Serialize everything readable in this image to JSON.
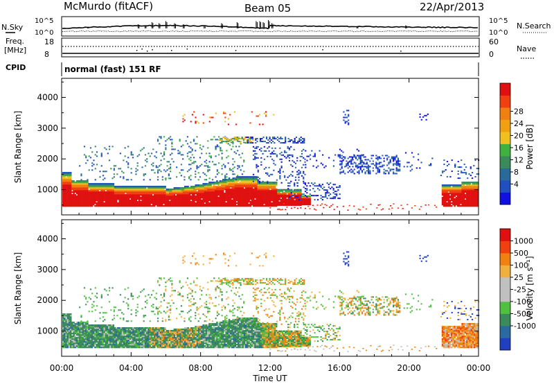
{
  "header": {
    "title": "McMurdo (fitACF)",
    "beam": "Beam 05",
    "date": "22/Apr/2013"
  },
  "status_panels": {
    "nsky_label": "N.Sky",
    "nsky_ticks": [
      "10^5",
      "10^0"
    ],
    "nsearch_label": "N.Search",
    "nsearch_ticks": [
      "10^5",
      "10^0"
    ],
    "freq_label_1": "Freq.",
    "freq_label_2": "[MHz]",
    "freq_ticks": [
      "18",
      "8"
    ],
    "nave_label": "Nave",
    "nave_ticks": [
      "60",
      "0"
    ],
    "cpid_label": "CPID",
    "cpid_value": "normal (fast) 151 RF"
  },
  "chart_data": [
    {
      "type": "heatmap",
      "name": "power",
      "ylabel": "Slant Range [km]",
      "ylim": [
        180,
        4620
      ],
      "yticks": [
        "1000",
        "2000",
        "3000",
        "4000"
      ],
      "colorbar_label": "Power [dB]",
      "colorbar_ticks": [
        "4",
        "8",
        "12",
        "16",
        "20",
        "24",
        "28"
      ],
      "colorbar_colors": [
        "#1010e0",
        "#2050c0",
        "#2a6a9a",
        "#3a8a5a",
        "#40b040",
        "#f0c020",
        "#f0a010",
        "#f08010",
        "#f04010",
        "#e01010"
      ]
    },
    {
      "type": "heatmap",
      "name": "velocity",
      "ylabel": "Slant Range [km]",
      "ylim": [
        180,
        4620
      ],
      "yticks": [
        "1000",
        "2000",
        "3000",
        "4000"
      ],
      "xlabel": "Time UT",
      "xticks": [
        "00:00",
        "04:00",
        "08:00",
        "12:00",
        "16:00",
        "20:00",
        "00:00"
      ],
      "colorbar_label": "Velocity [m s⁻¹]",
      "colorbar_ticks": [
        "1000",
        "500",
        "100",
        "25",
        "-25",
        "-100",
        "-500",
        "-1000"
      ],
      "colorbar_colors": [
        "#2040c0",
        "#2a6aa0",
        "#3a8a5a",
        "#50c040",
        "#c0c0c0",
        "#c0c0c0",
        "#f0b040",
        "#f08010",
        "#f04010",
        "#e01010"
      ]
    }
  ]
}
